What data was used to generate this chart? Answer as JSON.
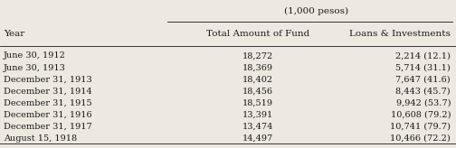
{
  "title": "(1,000 pesos)",
  "col1_header": "Year",
  "col2_header": "Total Amount of Fund",
  "col3_header": "Loans & Investments",
  "rows": [
    [
      "June 30, 1912",
      "18,272",
      "2,214 (12.1)"
    ],
    [
      "June 30, 1913",
      "18,369",
      "5,714 (31.1)"
    ],
    [
      "December 31, 1913",
      "18,402",
      "7,647 (41.6)"
    ],
    [
      "December 31, 1914",
      "18,456",
      "8,443 (45.7)"
    ],
    [
      "December 31, 1915",
      "18,519",
      "9,942 (53.7)"
    ],
    [
      "December 31, 1916",
      "13,391",
      "10,608 (79.2)"
    ],
    [
      "December 31, 1917",
      "13,474",
      "10,741 (79.7)"
    ],
    [
      "August 15, 1918",
      "14,497",
      "10,466 (72.2)"
    ]
  ],
  "bg_color": "#ede9e0",
  "text_color": "#1a1a1a",
  "font_family": "serif",
  "title_fontsize": 7.5,
  "header_fontsize": 7.5,
  "data_fontsize": 7.0,
  "figsize": [
    5.04,
    1.64
  ],
  "dpi": 100
}
